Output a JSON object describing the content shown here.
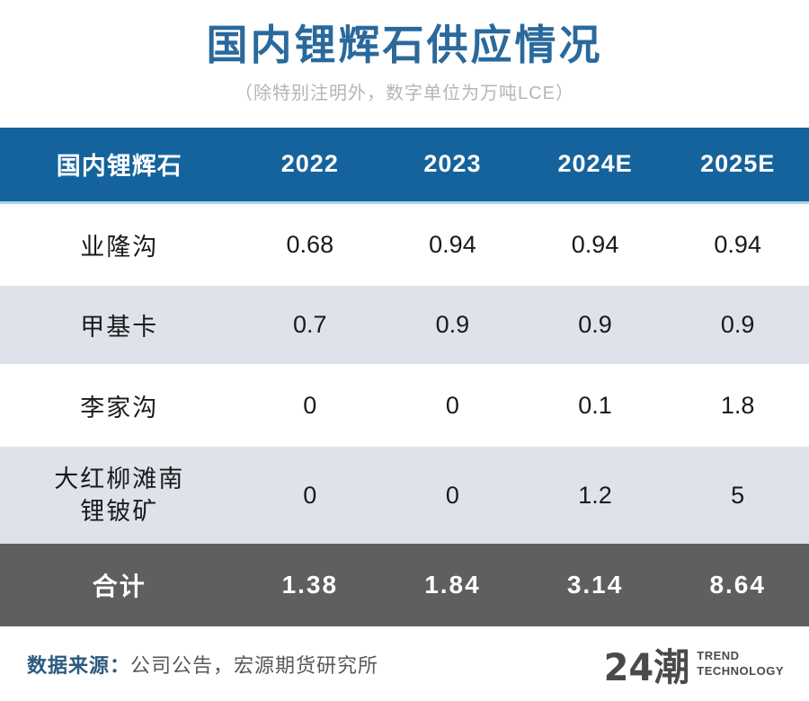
{
  "page": {
    "title": "国内锂辉石供应情况",
    "subtitle": "（除特别注明外，数字单位为万吨LCE）"
  },
  "table": {
    "header": [
      "国内锂辉石",
      "2022",
      "2023",
      "2024E",
      "2025E"
    ],
    "rows": [
      {
        "name": "业隆沟",
        "values": [
          "0.68",
          "0.94",
          "0.94",
          "0.94"
        ]
      },
      {
        "name": "甲基卡",
        "values": [
          "0.7",
          "0.9",
          "0.9",
          "0.9"
        ]
      },
      {
        "name": "李家沟",
        "values": [
          "0",
          "0",
          "0.1",
          "1.8"
        ]
      },
      {
        "name": "大红柳滩南",
        "name2": "锂铍矿",
        "values": [
          "0",
          "0",
          "1.2",
          "5"
        ]
      }
    ],
    "total": {
      "name": "合计",
      "values": [
        "1.38",
        "1.84",
        "3.14",
        "8.64"
      ]
    }
  },
  "footer": {
    "source_label": "数据来源：",
    "source_text": "公司公告，宏源期货研究所",
    "logo_text": "24潮",
    "logo_line1": "TREND",
    "logo_line2": "TECHNOLOGY"
  },
  "colors": {
    "header_bg": "#15639c",
    "row_alt_bg": "#dee2eb",
    "total_bg": "#5f5f61",
    "title_color": "#2a699c",
    "header_separator": "#a9d3e8",
    "source_label_color": "#2c5a7e",
    "logo_color": "#4a4a4c"
  },
  "chart_data": {
    "type": "table",
    "title": "国内锂辉石供应情况",
    "subtitle": "（除特别注明外，数字单位为万吨LCE）",
    "columns": [
      "国内锂辉石",
      "2022",
      "2023",
      "2024E",
      "2025E"
    ],
    "rows": [
      [
        "业隆沟",
        0.68,
        0.94,
        0.94,
        0.94
      ],
      [
        "甲基卡",
        0.7,
        0.9,
        0.9,
        0.9
      ],
      [
        "李家沟",
        0,
        0,
        0.1,
        1.8
      ],
      [
        "大红柳滩南锂铍矿",
        0,
        0,
        1.2,
        5
      ],
      [
        "合计",
        1.38,
        1.84,
        3.14,
        8.64
      ]
    ],
    "units": "万吨LCE",
    "source": "公司公告，宏源期货研究所"
  }
}
